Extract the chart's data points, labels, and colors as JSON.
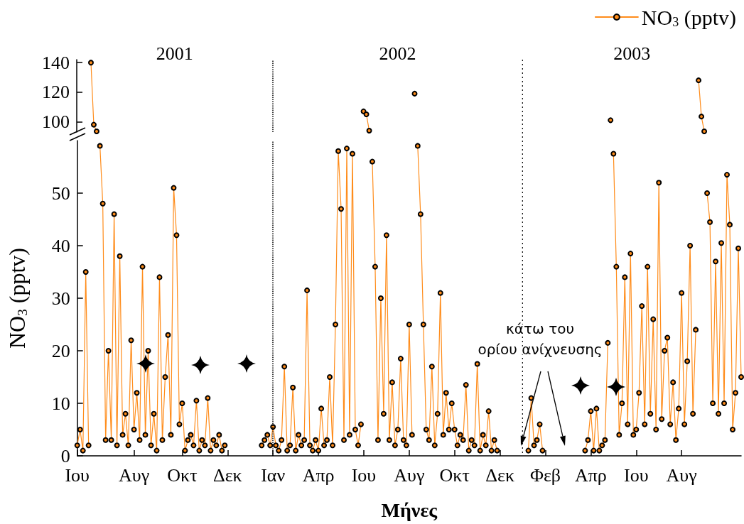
{
  "chart_data": [
    {
      "type": "line",
      "tick_labels": "y",
      "legend": "top right",
      "marker": "circle",
      "line_style": "solid",
      "grid": false,
      "categories": [
        "Ιου",
        null,
        null,
        null,
        null,
        null,
        null,
        null,
        null,
        null,
        null,
        null,
        null,
        null,
        null,
        null,
        null,
        null,
        null,
        null,
        "Αυγ",
        null,
        null,
        null,
        null,
        null,
        null,
        null,
        null,
        null,
        null,
        null,
        null,
        null,
        null,
        null,
        null,
        "Οκτ",
        null,
        null,
        null,
        null,
        null,
        null,
        null,
        null,
        null,
        null,
        null,
        null,
        null,
        null,
        null,
        "Δεκ",
        null,
        null,
        null,
        null,
        null,
        null,
        null,
        null,
        null,
        null,
        null,
        null,
        null,
        null,
        null,
        "Ιαν",
        null,
        null,
        null,
        null,
        null,
        null,
        null,
        null,
        null,
        null,
        null,
        null,
        null,
        null,
        null,
        "Απρ",
        null,
        null,
        null,
        null,
        null,
        null,
        null,
        null,
        null,
        null,
        null,
        null,
        null,
        null,
        null,
        "Ιου",
        null,
        null,
        null,
        null,
        null,
        null,
        null,
        null,
        null,
        null,
        null,
        null,
        null,
        null,
        null,
        "Αυγ",
        null,
        null,
        null,
        null,
        null,
        null,
        null,
        null,
        null,
        null,
        null,
        null,
        null,
        null,
        null,
        "Οκτ",
        null,
        null,
        null,
        null,
        null,
        null,
        null,
        null,
        null,
        null,
        null,
        null,
        null,
        null,
        null,
        "Δεκ",
        null,
        null,
        null,
        null,
        null,
        null,
        null,
        null,
        null,
        null,
        null,
        null,
        null,
        null,
        null,
        "Φεβ",
        null,
        null,
        null,
        null,
        null,
        null,
        null,
        null,
        null,
        null,
        null,
        null,
        null,
        null,
        null,
        "Απρ",
        null,
        null,
        null,
        null,
        null,
        null,
        null,
        null,
        null,
        null,
        null,
        null,
        null,
        null,
        null,
        "Ιου",
        null,
        null,
        null,
        null,
        null,
        null,
        null,
        null,
        null,
        null,
        null,
        null,
        null,
        null,
        null,
        "Αυγ",
        null,
        null,
        null,
        null,
        null,
        null,
        null,
        null,
        null,
        null,
        null,
        null,
        null,
        null,
        null,
        null,
        null,
        null,
        null,
        null,
        null
      ],
      "ylim": [
        93,
        142
      ],
      "yticks": [
        100,
        120,
        140
      ],
      "annotations": [
        "2001",
        "2002",
        "2003"
      ],
      "ref_lines": [
        {
          "axis": "x",
          "value": "Ιαν",
          "label": null,
          "line_style": "dotted",
          "color": "#000000"
        }
      ],
      "series": [
        {
          "name": "NO$_{3}$ (pptv)",
          "color": "#ff8c1a",
          "values": [
            null,
            null,
            null,
            null,
            null,
            140,
            98,
            93.5,
            null,
            null,
            null,
            null,
            null,
            null,
            null,
            null,
            null,
            null,
            null,
            null,
            null,
            null,
            null,
            null,
            null,
            null,
            null,
            null,
            null,
            null,
            null,
            null,
            null,
            null,
            null,
            null,
            null,
            null,
            null,
            null,
            null,
            null,
            null,
            null,
            null,
            null,
            null,
            null,
            null,
            null,
            null,
            null,
            null,
            null,
            null,
            null,
            null,
            null,
            null,
            null,
            null,
            null,
            null,
            null,
            null,
            null,
            null,
            null,
            null,
            null,
            null,
            null,
            null,
            null,
            null,
            null,
            null,
            null,
            null,
            null,
            null,
            null,
            null,
            null,
            null,
            null,
            null,
            null,
            null,
            null,
            null,
            null,
            null,
            null,
            null,
            null,
            null,
            null,
            null,
            null,
            null,
            107,
            105,
            94,
            null,
            null,
            null,
            null,
            null,
            null,
            null,
            null,
            null,
            null,
            null,
            null,
            null,
            null,
            null,
            119,
            null,
            null,
            null,
            null,
            null,
            null,
            null,
            null,
            null,
            null,
            null,
            null,
            null,
            null,
            null,
            null,
            null,
            null,
            null,
            null,
            null,
            null,
            null,
            null,
            null,
            null,
            null,
            null,
            null,
            null,
            null,
            null,
            null,
            null,
            null,
            null,
            null,
            null,
            null,
            null,
            null,
            null,
            null,
            null,
            null,
            null,
            null,
            null,
            null,
            null,
            null,
            null,
            null,
            null,
            null,
            null,
            null,
            null,
            null,
            null,
            null,
            null,
            null,
            null,
            null,
            null,
            null,
            null,
            101,
            null,
            null,
            null,
            null,
            null,
            null,
            null,
            null,
            null,
            null,
            null,
            null,
            null,
            null,
            null,
            null,
            null,
            null,
            null,
            null,
            null,
            null,
            null,
            null,
            null,
            null,
            null,
            null,
            null,
            null,
            128,
            103.5,
            93.5,
            null,
            null,
            null,
            null,
            null,
            null,
            null,
            null,
            null,
            null,
            null,
            null,
            null
          ]
        }
      ]
    },
    {
      "type": "line",
      "marker": "circle",
      "line_style": "solid",
      "grid": false,
      "legend": false,
      "xlabel": "Μήνες",
      "ylabel": "NO$_{3}$ (pptv)",
      "categories": [
        "Ιου",
        null,
        null,
        null,
        null,
        null,
        null,
        null,
        null,
        null,
        null,
        null,
        null,
        null,
        null,
        null,
        null,
        null,
        null,
        null,
        "Αυγ",
        null,
        null,
        null,
        null,
        null,
        null,
        null,
        null,
        null,
        null,
        null,
        null,
        null,
        null,
        null,
        null,
        "Οκτ",
        null,
        null,
        null,
        null,
        null,
        null,
        null,
        null,
        null,
        null,
        null,
        null,
        null,
        null,
        null,
        "Δεκ",
        null,
        null,
        null,
        null,
        null,
        null,
        null,
        null,
        null,
        null,
        null,
        null,
        null,
        null,
        null,
        "Ιαν",
        null,
        null,
        null,
        null,
        null,
        null,
        null,
        null,
        null,
        null,
        null,
        null,
        null,
        null,
        null,
        "Απρ",
        null,
        null,
        null,
        null,
        null,
        null,
        null,
        null,
        null,
        null,
        null,
        null,
        null,
        null,
        null,
        "Ιου",
        null,
        null,
        null,
        null,
        null,
        null,
        null,
        null,
        null,
        null,
        null,
        null,
        null,
        null,
        null,
        "Αυγ",
        null,
        null,
        null,
        null,
        null,
        null,
        null,
        null,
        null,
        null,
        null,
        null,
        null,
        null,
        null,
        "Οκτ",
        null,
        null,
        null,
        null,
        null,
        null,
        null,
        null,
        null,
        null,
        null,
        null,
        null,
        null,
        null,
        "Δεκ",
        null,
        null,
        null,
        null,
        null,
        null,
        null,
        null,
        null,
        null,
        null,
        null,
        null,
        null,
        null,
        "Φεβ",
        null,
        null,
        null,
        null,
        null,
        null,
        null,
        null,
        null,
        null,
        null,
        null,
        null,
        null,
        null,
        "Απρ",
        null,
        null,
        null,
        null,
        null,
        null,
        null,
        null,
        null,
        null,
        null,
        null,
        null,
        null,
        null,
        "Ιου",
        null,
        null,
        null,
        null,
        null,
        null,
        null,
        null,
        null,
        null,
        null,
        null,
        null,
        null,
        null,
        "Αυγ",
        null,
        null,
        null,
        null,
        null,
        null,
        null,
        null,
        null,
        null,
        null,
        null,
        null,
        null,
        null,
        null,
        null,
        null,
        null,
        null,
        null
      ],
      "ylim": [
        0,
        60
      ],
      "yticks": [
        0,
        10,
        20,
        30,
        40,
        50
      ],
      "annotations": [
        "κάτω του\nορίου ανίχνευσης"
      ],
      "ref_lines": [
        {
          "axis": "x",
          "value": "Ιαν",
          "label": null,
          "line_style": "dotted",
          "color": "#000000"
        }
      ],
      "series": [
        {
          "color": "#ff8c1a",
          "values": [
            2,
            5,
            1,
            35,
            2,
            null,
            null,
            null,
            59,
            48,
            3,
            20,
            3,
            46,
            2,
            38,
            4,
            8,
            2,
            22,
            5,
            12,
            3,
            36,
            4,
            20,
            2,
            8,
            1,
            34,
            3,
            15,
            23,
            4,
            51,
            42,
            6,
            10,
            1,
            3,
            4,
            2,
            10.5,
            1,
            3,
            2,
            11,
            1,
            3,
            2,
            4,
            1,
            2,
            null,
            null,
            null,
            null,
            null,
            null,
            null,
            null,
            null,
            null,
            null,
            null,
            2,
            3,
            4,
            2,
            5.5,
            2,
            1,
            3,
            17,
            1,
            2,
            13,
            1,
            4,
            2,
            3,
            31.5,
            2,
            1,
            3,
            1,
            9,
            2,
            3,
            15,
            2,
            25,
            58,
            47,
            3,
            58.5,
            4,
            57.5,
            5,
            2,
            6,
            null,
            null,
            null,
            56,
            36,
            3,
            30,
            8,
            42,
            3,
            14,
            2,
            5,
            18.5,
            3,
            2,
            25,
            4,
            null,
            59,
            46,
            25,
            5,
            3,
            17,
            2,
            8,
            31,
            4,
            12,
            5,
            10,
            5,
            2,
            4,
            3,
            13.5,
            1,
            3,
            2,
            17.5,
            1,
            4,
            2,
            8.5,
            1,
            3,
            1,
            null,
            null,
            null,
            null,
            null,
            null,
            null,
            null,
            null,
            null,
            1,
            11,
            2,
            3,
            6,
            1,
            null,
            null,
            null,
            null,
            null,
            null,
            null,
            null,
            null,
            null,
            null,
            null,
            null,
            null,
            1,
            3,
            8.5,
            1,
            9,
            1,
            2,
            3,
            21.5,
            null,
            57.5,
            36,
            4,
            10,
            34,
            6,
            38.5,
            4,
            5,
            12,
            28.5,
            6,
            36,
            8,
            26,
            5,
            52,
            7,
            20,
            22.5,
            6,
            14,
            3,
            9,
            31,
            6,
            18,
            40,
            8,
            24,
            null,
            null,
            null,
            50,
            44.5,
            10,
            37,
            8,
            40.5,
            10,
            53.5,
            44,
            5,
            12,
            39.5,
            15
          ]
        }
      ]
    }
  ]
}
